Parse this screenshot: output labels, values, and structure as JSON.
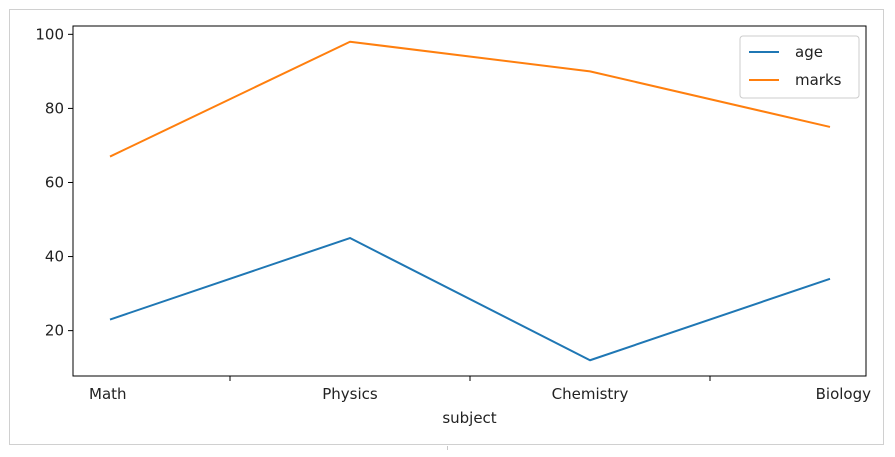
{
  "chart_data": {
    "type": "line",
    "title": "",
    "xlabel": "subject",
    "ylabel": "",
    "categories": [
      "Math",
      "Physics",
      "Chemistry",
      "Biology"
    ],
    "series": [
      {
        "name": "age",
        "values": [
          23,
          45,
          12,
          34
        ],
        "color": "#1f77b4"
      },
      {
        "name": "marks",
        "values": [
          67,
          98,
          90,
          75
        ],
        "color": "#ff7f0e"
      }
    ],
    "ylim": [
      7.75,
      102.25
    ],
    "yticks": [
      20,
      40,
      60,
      80,
      100
    ],
    "grid": false,
    "legend_position": "top-right"
  }
}
